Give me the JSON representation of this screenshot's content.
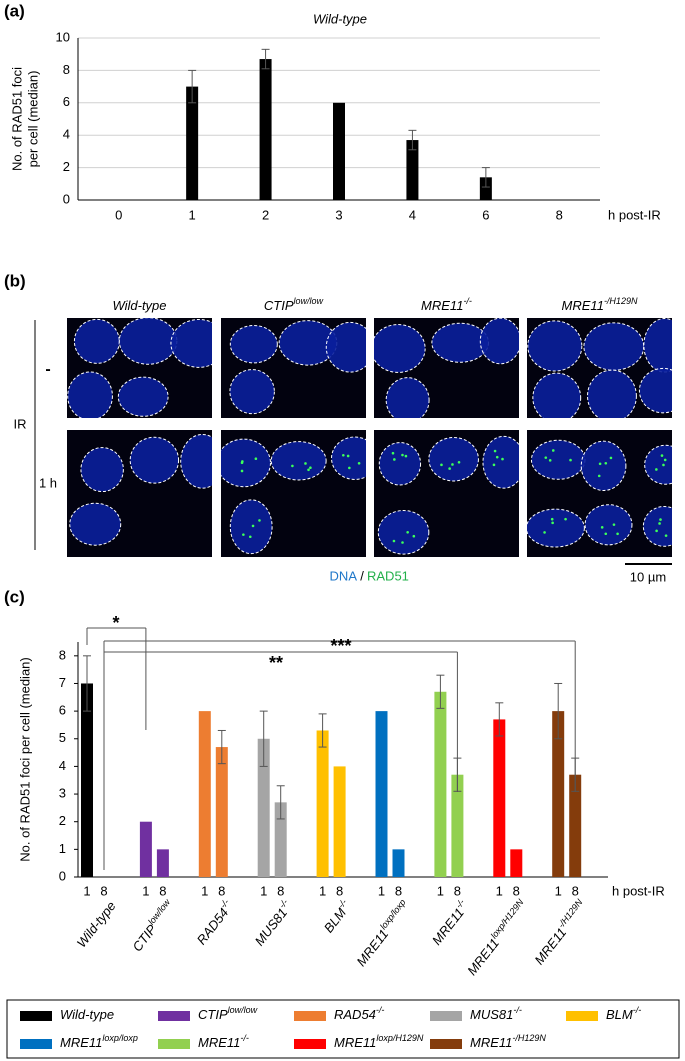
{
  "panel_labels": [
    "(a)",
    "(b)",
    "(c)"
  ],
  "chart_data": [
    {
      "type": "bar",
      "title": "Wild-type",
      "y_label": [
        "No. of RAD51 foci",
        "per cell (median)"
      ],
      "x_label": "h post-IR",
      "categories": [
        "0",
        "1",
        "2",
        "3",
        "4",
        "6",
        "8"
      ],
      "values": [
        0,
        7,
        8.7,
        6,
        3.7,
        1.4,
        0
      ],
      "errors": [
        null,
        1,
        0.6,
        null,
        0.6,
        0.6,
        null
      ],
      "color": "#000000",
      "ylim": [
        0,
        10
      ],
      "yticks": [
        0,
        2,
        4,
        6,
        8,
        10
      ],
      "grid": true
    },
    {
      "type": "bar",
      "y_label": "No. of RAD51 foci per cell (median)",
      "x_label": "h post-IR",
      "categories": [
        "1",
        "8"
      ],
      "series": [
        {
          "name": "Wild-type",
          "color": "#000000",
          "values": [
            7,
            0
          ],
          "errors": [
            1,
            null
          ]
        },
        {
          "name": "CTIP",
          "name_sup": "low/low",
          "color": "#7030a0",
          "values": [
            2,
            1
          ],
          "errors": [
            null,
            null
          ]
        },
        {
          "name": "RAD54",
          "name_sup": "-/-",
          "color": "#ed7d31",
          "values": [
            6,
            4.7
          ],
          "errors": [
            null,
            0.6
          ]
        },
        {
          "name": "MUS81",
          "name_sup": "-/-",
          "color": "#a5a5a5",
          "values": [
            5,
            2.7
          ],
          "errors": [
            1,
            0.6
          ]
        },
        {
          "name": "BLM",
          "name_sup": "-/-",
          "color": "#ffc000",
          "values": [
            5.3,
            4
          ],
          "errors": [
            0.6,
            null
          ]
        },
        {
          "name": "MRE11",
          "name_sup": "loxp/loxp",
          "color": "#0070c0",
          "values": [
            6,
            1
          ],
          "errors": [
            null,
            null
          ]
        },
        {
          "name": "MRE11",
          "name_sup": "-/-",
          "color": "#92d050",
          "values": [
            6.7,
            3.7
          ],
          "errors": [
            0.6,
            0.6
          ]
        },
        {
          "name": "MRE11",
          "name_sup": "loxp/H129N",
          "color": "#ff0000",
          "values": [
            5.7,
            1
          ],
          "errors": [
            0.6,
            null
          ]
        },
        {
          "name": "MRE11",
          "name_sup": "-/H129N",
          "color": "#843c0c",
          "values": [
            6,
            3.7
          ],
          "errors": [
            1,
            0.6
          ]
        }
      ],
      "annotations": [
        "*",
        "**",
        "***"
      ],
      "ylim": [
        0,
        8.5
      ],
      "yticks": [
        0,
        1,
        2,
        3,
        4,
        5,
        6,
        7,
        8
      ],
      "grid": false,
      "legend": "bottom"
    }
  ],
  "images": {
    "columns": [
      {
        "name": "Wild-type"
      },
      {
        "name": "CTIP",
        "name_sup": "low/low"
      },
      {
        "name": "MRE11",
        "name_sup": "-/-"
      },
      {
        "name": "MRE11",
        "name_sup": "-/H129N"
      }
    ],
    "row_group": "IR",
    "rows": [
      "-",
      "1 h"
    ],
    "caption": [
      "DNA",
      "/",
      "RAD51"
    ],
    "scale_bar": "10 µm"
  }
}
